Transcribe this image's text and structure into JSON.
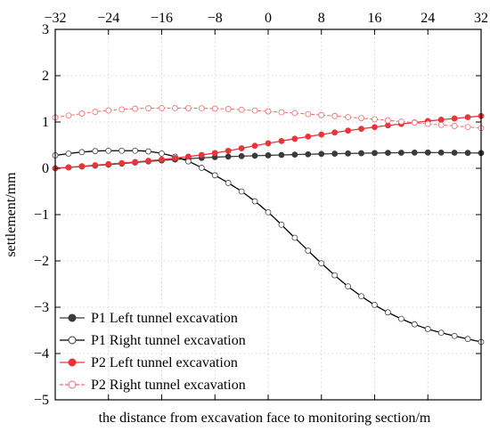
{
  "chart_data": {
    "type": "line",
    "title": "",
    "xlabel": "the distance from excavation face to monitoring section/m",
    "ylabel": "settlement/mm",
    "xlim": [
      -32,
      32
    ],
    "ylim": [
      -5,
      3
    ],
    "xticks": [
      -32,
      -24,
      -16,
      -8,
      0,
      8,
      16,
      24,
      32
    ],
    "yticks": [
      -5,
      -4,
      -3,
      -2,
      -1,
      0,
      1,
      2,
      3
    ],
    "xtick_labels": [
      "−32",
      "−24",
      "−16",
      "−8",
      "0",
      "8",
      "16",
      "24",
      "32"
    ],
    "ytick_labels": [
      "−5",
      "−4",
      "−3",
      "−2",
      "−1",
      "0",
      "1",
      "2",
      "3"
    ],
    "grid": true,
    "legend_position": "bottom-left",
    "series": [
      {
        "name": "P1 Left tunnel excavation",
        "color": "#3a3a3a",
        "marker": "filled-circle",
        "line_style": "solid",
        "x": [
          -32,
          -24,
          -16,
          -8,
          0,
          8,
          16,
          24,
          32
        ],
        "y": [
          0.0,
          0.08,
          0.17,
          0.24,
          0.28,
          0.31,
          0.33,
          0.34,
          0.33
        ]
      },
      {
        "name": "P1 Right tunnel excavation",
        "color": "#000000",
        "marker": "open-circle",
        "line_style": "solid",
        "x": [
          -32,
          -28,
          -24,
          -20,
          -16,
          -12,
          -8,
          -4,
          0,
          4,
          8,
          12,
          16,
          20,
          24,
          28,
          32
        ],
        "y": [
          0.28,
          0.35,
          0.38,
          0.38,
          0.32,
          0.15,
          -0.15,
          -0.5,
          -0.95,
          -1.5,
          -2.05,
          -2.55,
          -2.95,
          -3.25,
          -3.47,
          -3.62,
          -3.75
        ]
      },
      {
        "name": "P2 Left tunnel excavation",
        "color": "#e8353a",
        "marker": "filled-circle",
        "line_style": "solid",
        "x": [
          -32,
          -24,
          -16,
          -8,
          0,
          8,
          16,
          24,
          32
        ],
        "y": [
          0.0,
          0.09,
          0.19,
          0.33,
          0.54,
          0.73,
          0.89,
          1.02,
          1.13
        ]
      },
      {
        "name": "P2 Right tunnel excavation",
        "color": "#f06a6f",
        "marker": "open-circle",
        "line_style": "dashed",
        "x": [
          -32,
          -24,
          -16,
          -8,
          0,
          8,
          16,
          24,
          32
        ],
        "y": [
          1.1,
          1.25,
          1.3,
          1.29,
          1.23,
          1.15,
          1.06,
          0.96,
          0.87
        ]
      }
    ]
  }
}
